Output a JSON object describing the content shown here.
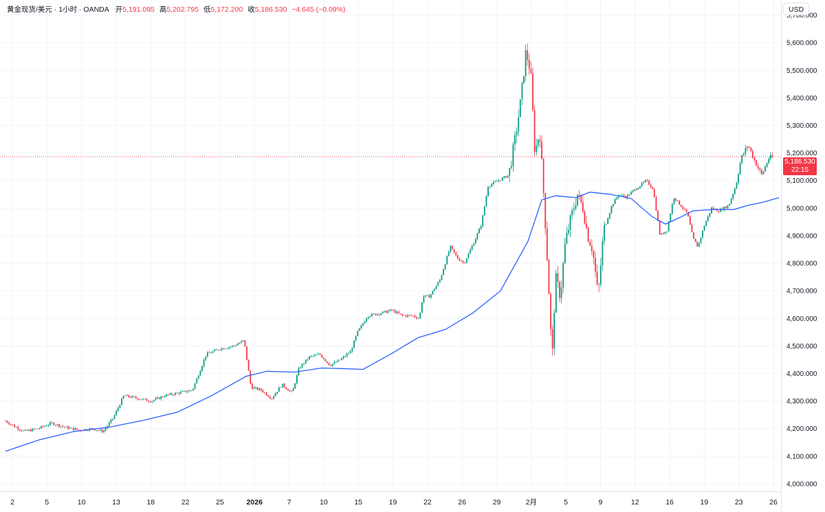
{
  "legend": {
    "symbol": "黄金现货/美元 · 1小时 · OANDA",
    "open_label": "开",
    "open": "5,191.095",
    "high_label": "高",
    "high": "5,202.795",
    "low_label": "低",
    "low": "5,172.200",
    "close_label": "收",
    "close": "5,186.530",
    "change": "−4.645 (−0.09%)"
  },
  "currency": "USD",
  "last_price": {
    "value": "5,186.530",
    "countdown": "22:15"
  },
  "colors": {
    "up": "#089981",
    "down": "#f23645",
    "ma": "#2962ff",
    "grid": "#f0f3fa",
    "axis_text": "#131722"
  },
  "chart_data": {
    "type": "candlestick",
    "y_axis_labels": [
      "5,700.000",
      "5,600.000",
      "5,500.000",
      "5,400.000",
      "5,300.000",
      "5,200.000",
      "5,100.000",
      "5,000.000",
      "4,900.000",
      "4,800.000",
      "4,700.000",
      "4,600.000",
      "4,500.000",
      "4,400.000",
      "4,300.000",
      "4,200.000",
      "4,100.000",
      "4,000.000"
    ],
    "ylim": [
      3980,
      5720
    ],
    "x_tick_labels": [
      "2",
      "5",
      "10",
      "13",
      "18",
      "22",
      "25",
      "2026",
      "7",
      "10",
      "15",
      "19",
      "22",
      "26",
      "29",
      "2月",
      "5",
      "9",
      "12",
      "16",
      "19",
      "23",
      "26"
    ],
    "price_path": [
      [
        0,
        4240
      ],
      [
        20,
        4210
      ],
      [
        35,
        4190
      ],
      [
        55,
        4200
      ],
      [
        75,
        4220
      ],
      [
        95,
        4205
      ],
      [
        115,
        4195
      ],
      [
        135,
        4200
      ],
      [
        150,
        4190
      ],
      [
        165,
        4240
      ],
      [
        180,
        4320
      ],
      [
        200,
        4310
      ],
      [
        220,
        4300
      ],
      [
        240,
        4320
      ],
      [
        260,
        4330
      ],
      [
        280,
        4340
      ],
      [
        300,
        4470
      ],
      [
        320,
        4490
      ],
      [
        340,
        4500
      ],
      [
        355,
        4520
      ],
      [
        365,
        4350
      ],
      [
        380,
        4340
      ],
      [
        395,
        4310
      ],
      [
        410,
        4360
      ],
      [
        425,
        4330
      ],
      [
        435,
        4420
      ],
      [
        450,
        4460
      ],
      [
        465,
        4470
      ],
      [
        480,
        4430
      ],
      [
        495,
        4450
      ],
      [
        510,
        4480
      ],
      [
        520,
        4550
      ],
      [
        535,
        4610
      ],
      [
        555,
        4620
      ],
      [
        570,
        4630
      ],
      [
        585,
        4610
      ],
      [
        600,
        4610
      ],
      [
        610,
        4600
      ],
      [
        615,
        4680
      ],
      [
        625,
        4680
      ],
      [
        640,
        4740
      ],
      [
        655,
        4860
      ],
      [
        665,
        4820
      ],
      [
        675,
        4800
      ],
      [
        690,
        4880
      ],
      [
        700,
        4940
      ],
      [
        710,
        5080
      ],
      [
        725,
        5100
      ],
      [
        740,
        5120
      ],
      [
        750,
        5260
      ],
      [
        758,
        5400
      ],
      [
        765,
        5570
      ],
      [
        772,
        5490
      ],
      [
        778,
        5200
      ],
      [
        785,
        5280
      ],
      [
        792,
        5000
      ],
      [
        798,
        4720
      ],
      [
        803,
        4440
      ],
      [
        808,
        4750
      ],
      [
        815,
        4680
      ],
      [
        822,
        4870
      ],
      [
        830,
        4960
      ],
      [
        840,
        5050
      ],
      [
        848,
        5000
      ],
      [
        855,
        4900
      ],
      [
        862,
        4850
      ],
      [
        870,
        4680
      ],
      [
        878,
        4920
      ],
      [
        890,
        5010
      ],
      [
        900,
        5050
      ],
      [
        910,
        5040
      ],
      [
        920,
        5060
      ],
      [
        930,
        5080
      ],
      [
        940,
        5100
      ],
      [
        950,
        5070
      ],
      [
        960,
        4900
      ],
      [
        970,
        4920
      ],
      [
        980,
        5040
      ],
      [
        990,
        5010
      ],
      [
        1000,
        4980
      ],
      [
        1008,
        4890
      ],
      [
        1015,
        4860
      ],
      [
        1025,
        4940
      ],
      [
        1035,
        5000
      ],
      [
        1045,
        4990
      ],
      [
        1060,
        5010
      ],
      [
        1070,
        5080
      ],
      [
        1078,
        5180
      ],
      [
        1088,
        5230
      ],
      [
        1098,
        5170
      ],
      [
        1108,
        5120
      ],
      [
        1118,
        5180
      ],
      [
        1125,
        5186
      ]
    ],
    "ma_path": [
      [
        0,
        4118
      ],
      [
        50,
        4160
      ],
      [
        100,
        4190
      ],
      [
        150,
        4205
      ],
      [
        200,
        4230
      ],
      [
        250,
        4260
      ],
      [
        300,
        4320
      ],
      [
        350,
        4390
      ],
      [
        380,
        4408
      ],
      [
        420,
        4405
      ],
      [
        460,
        4420
      ],
      [
        490,
        4418
      ],
      [
        520,
        4415
      ],
      [
        560,
        4470
      ],
      [
        600,
        4530
      ],
      [
        640,
        4560
      ],
      [
        680,
        4620
      ],
      [
        720,
        4700
      ],
      [
        760,
        4880
      ],
      [
        780,
        5030
      ],
      [
        800,
        5045
      ],
      [
        830,
        5038
      ],
      [
        850,
        5058
      ],
      [
        880,
        5050
      ],
      [
        910,
        5035
      ],
      [
        940,
        4970
      ],
      [
        960,
        4942
      ],
      [
        980,
        4965
      ],
      [
        1000,
        4990
      ],
      [
        1030,
        4995
      ],
      [
        1060,
        4995
      ],
      [
        1080,
        5010
      ],
      [
        1100,
        5020
      ],
      [
        1125,
        5038
      ]
    ]
  }
}
